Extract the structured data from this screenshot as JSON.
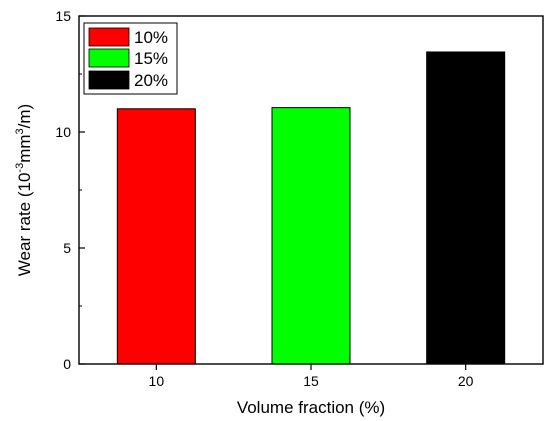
{
  "chart_data": {
    "type": "bar",
    "categories": [
      "10",
      "15",
      "20"
    ],
    "values": [
      11.0,
      11.05,
      13.45
    ],
    "colors": [
      "#ff0000",
      "#00ff00",
      "#000000"
    ],
    "xlabel": "Volume fraction (%)",
    "ylabel_parts": {
      "before": "Wear rate (10",
      "sup1": "-3",
      "middle": "mm",
      "sup2": "3",
      "after": "/m)"
    },
    "ylim": [
      0,
      15
    ],
    "yticks": [
      "0",
      "5",
      "10",
      "15"
    ],
    "legend": {
      "placement": "top-left",
      "entries": [
        "10%",
        "15%",
        "20%"
      ]
    },
    "grid": false
  }
}
